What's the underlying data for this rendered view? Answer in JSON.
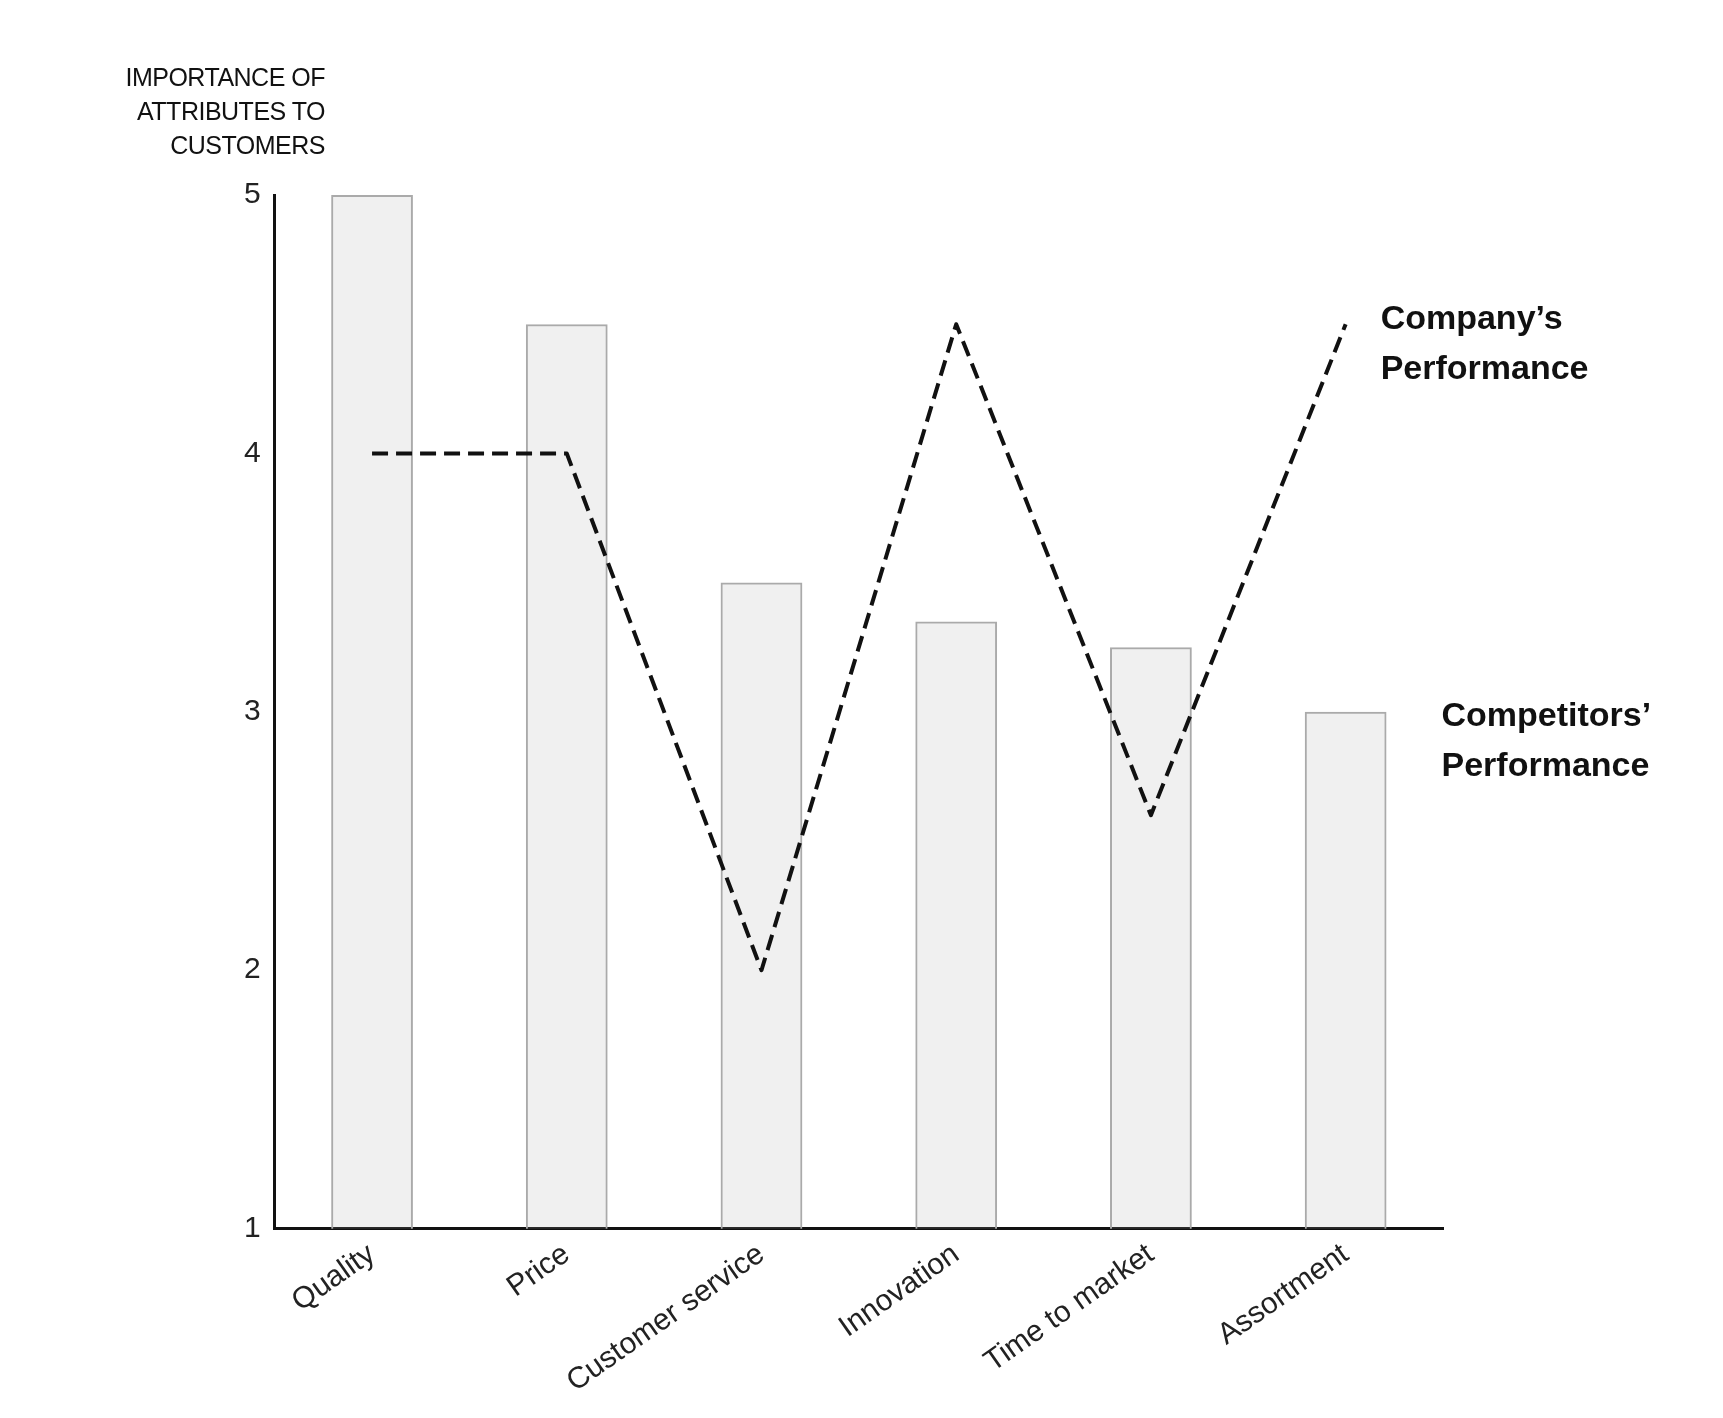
{
  "chart_data": {
    "type": "bar",
    "ylabel": "IMPORTANCE OF ATTRIBUTES TO CUSTOMERS",
    "categories": [
      "Quality",
      "Price",
      "Customer service",
      "Innovation",
      "Time to market",
      "Assortment"
    ],
    "series": [
      {
        "name": "Competitors’ Performance",
        "color": "#aaaaaa",
        "values": [
          5,
          4.5,
          3.5,
          3.35,
          3.25,
          3
        ]
      },
      {
        "name": "Company’s Performance",
        "type": "line",
        "color": "#111111",
        "values": [
          4,
          4,
          2,
          4.5,
          2.6,
          4.5
        ],
        "line_style": "dashed",
        "marker": "none"
      }
    ],
    "ylim": [
      1,
      5
    ],
    "yticks": [
      1,
      2,
      3,
      4,
      5
    ],
    "grid": false,
    "legend": false
  }
}
